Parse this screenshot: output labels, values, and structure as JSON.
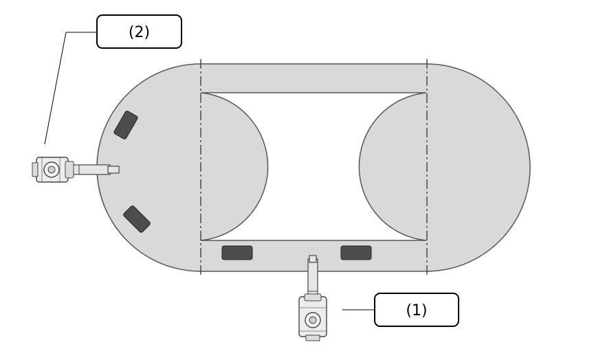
{
  "callouts": {
    "label_1": "(1)",
    "label_2": "(2)"
  },
  "colors": {
    "track_fill": "#d9d9d9",
    "stroke": "#555555",
    "carrier_fill": "#4d4d4d",
    "background": "#ffffff"
  },
  "icons": {
    "robot": "industrial-robot-icon",
    "carrier": "workpiece-carrier-icon"
  }
}
